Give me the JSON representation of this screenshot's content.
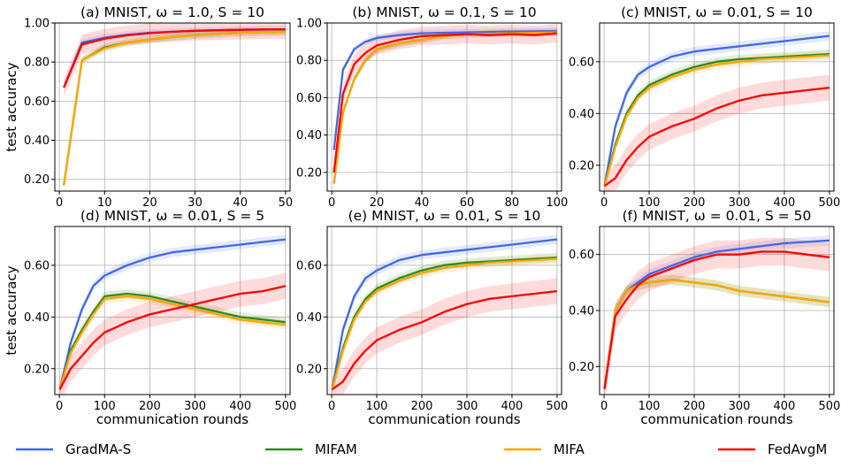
{
  "chart_data": [
    {
      "type": "line",
      "title": "(a) MNIST, ω = 1.0, S = 10",
      "xlabel": "",
      "ylabel": "test accuracy",
      "xlim": [
        -1,
        51
      ],
      "ylim": [
        0.14,
        1.0
      ],
      "xticks": [
        0,
        10,
        20,
        30,
        40,
        50
      ],
      "xtick_labels": [
        "0",
        "10",
        "20",
        "30",
        "40",
        "50"
      ],
      "yticks": [
        0.2,
        0.4,
        0.6,
        0.8,
        1.0
      ],
      "ytick_labels": [
        "0.20",
        "0.40",
        "0.60",
        "0.80",
        "1.00"
      ],
      "grid": true,
      "series": [
        {
          "name": "GradMA-S",
          "color": "#4169e1",
          "x": [
            1,
            5,
            10,
            15,
            20,
            25,
            30,
            35,
            40,
            45,
            50
          ],
          "y": [
            0.67,
            0.9,
            0.925,
            0.94,
            0.95,
            0.955,
            0.96,
            0.963,
            0.965,
            0.967,
            0.968
          ]
        },
        {
          "name": "MIFAM",
          "color": "#2e8b20",
          "x": [
            1,
            5,
            10,
            15,
            20,
            25,
            30,
            35,
            40,
            45,
            50
          ],
          "y": [
            0.17,
            0.81,
            0.875,
            0.9,
            0.915,
            0.928,
            0.938,
            0.945,
            0.95,
            0.953,
            0.955
          ]
        },
        {
          "name": "MIFA",
          "color": "#ffa500",
          "x": [
            1,
            5,
            10,
            15,
            20,
            25,
            30,
            35,
            40,
            45,
            50
          ],
          "y": [
            0.17,
            0.81,
            0.87,
            0.9,
            0.915,
            0.928,
            0.938,
            0.945,
            0.95,
            0.953,
            0.955
          ]
        },
        {
          "name": "FedAvgM",
          "color": "#ff0000",
          "x": [
            1,
            5,
            10,
            15,
            20,
            25,
            30,
            35,
            40,
            45,
            50
          ],
          "y": [
            0.67,
            0.89,
            0.92,
            0.937,
            0.948,
            0.955,
            0.96,
            0.963,
            0.965,
            0.967,
            0.968
          ]
        }
      ]
    },
    {
      "type": "line",
      "title": "(b) MNIST, ω = 0.1, S = 10",
      "xlabel": "",
      "ylabel": "",
      "xlim": [
        -2,
        102
      ],
      "ylim": [
        0.1,
        1.0
      ],
      "xticks": [
        0,
        20,
        40,
        60,
        80,
        100
      ],
      "xtick_labels": [
        "0",
        "20",
        "40",
        "60",
        "80",
        "100"
      ],
      "yticks": [
        0.2,
        0.4,
        0.6,
        0.8,
        1.0
      ],
      "ytick_labels": [
        "0.20",
        "0.40",
        "0.60",
        "0.80",
        "1.00"
      ],
      "grid": true,
      "series": [
        {
          "name": "GradMA-S",
          "color": "#4169e1",
          "x": [
            1,
            5,
            10,
            15,
            20,
            30,
            40,
            50,
            60,
            70,
            80,
            90,
            100
          ],
          "y": [
            0.32,
            0.75,
            0.86,
            0.9,
            0.92,
            0.935,
            0.945,
            0.948,
            0.95,
            0.952,
            0.954,
            0.955,
            0.956
          ]
        },
        {
          "name": "MIFAM",
          "color": "#2e8b20",
          "x": [
            1,
            5,
            10,
            15,
            20,
            30,
            40,
            50,
            60,
            70,
            80,
            90,
            100
          ],
          "y": [
            0.14,
            0.52,
            0.7,
            0.8,
            0.86,
            0.89,
            0.91,
            0.93,
            0.94,
            0.942,
            0.945,
            0.947,
            0.95
          ]
        },
        {
          "name": "MIFA",
          "color": "#ffa500",
          "x": [
            1,
            5,
            10,
            15,
            20,
            30,
            40,
            50,
            60,
            70,
            80,
            90,
            100
          ],
          "y": [
            0.14,
            0.52,
            0.7,
            0.8,
            0.86,
            0.89,
            0.91,
            0.93,
            0.94,
            0.942,
            0.945,
            0.947,
            0.95
          ]
        },
        {
          "name": "FedAvgM",
          "color": "#ff0000",
          "x": [
            1,
            5,
            10,
            15,
            20,
            30,
            40,
            50,
            60,
            70,
            80,
            90,
            100
          ],
          "y": [
            0.2,
            0.62,
            0.78,
            0.84,
            0.88,
            0.91,
            0.93,
            0.935,
            0.94,
            0.935,
            0.94,
            0.935,
            0.945
          ]
        }
      ]
    },
    {
      "type": "line",
      "title": "(c) MNIST, ω = 0.01, S = 10",
      "xlabel": "",
      "ylabel": "",
      "xlim": [
        -10,
        510
      ],
      "ylim": [
        0.1,
        0.75
      ],
      "xticks": [
        0,
        100,
        200,
        300,
        400,
        500
      ],
      "xtick_labels": [
        "0",
        "100",
        "200",
        "300",
        "400",
        "500"
      ],
      "yticks": [
        0.2,
        0.4,
        0.6
      ],
      "ytick_labels": [
        "0.20",
        "0.40",
        "0.60"
      ],
      "grid": true,
      "series": [
        {
          "name": "GradMA-S",
          "color": "#4169e1",
          "x": [
            1,
            25,
            50,
            75,
            100,
            150,
            200,
            250,
            300,
            350,
            400,
            450,
            500
          ],
          "y": [
            0.12,
            0.35,
            0.48,
            0.55,
            0.58,
            0.62,
            0.64,
            0.65,
            0.66,
            0.67,
            0.68,
            0.69,
            0.7
          ]
        },
        {
          "name": "MIFAM",
          "color": "#2e8b20",
          "x": [
            1,
            25,
            50,
            75,
            100,
            150,
            200,
            250,
            300,
            350,
            400,
            450,
            500
          ],
          "y": [
            0.12,
            0.28,
            0.4,
            0.47,
            0.51,
            0.55,
            0.58,
            0.6,
            0.61,
            0.615,
            0.62,
            0.625,
            0.63
          ]
        },
        {
          "name": "MIFA",
          "color": "#ffa500",
          "x": [
            1,
            25,
            50,
            75,
            100,
            150,
            200,
            250,
            300,
            350,
            400,
            450,
            500
          ],
          "y": [
            0.12,
            0.27,
            0.39,
            0.46,
            0.5,
            0.54,
            0.57,
            0.59,
            0.6,
            0.61,
            0.615,
            0.62,
            0.625
          ]
        },
        {
          "name": "FedAvgM",
          "color": "#ff0000",
          "x": [
            1,
            25,
            50,
            75,
            100,
            150,
            200,
            250,
            300,
            350,
            400,
            450,
            500
          ],
          "y": [
            0.12,
            0.15,
            0.22,
            0.27,
            0.31,
            0.35,
            0.38,
            0.42,
            0.45,
            0.47,
            0.48,
            0.49,
            0.5
          ]
        }
      ]
    },
    {
      "type": "line",
      "title": "(d) MNIST, ω = 0.01, S = 5",
      "xlabel": "communication rounds",
      "ylabel": "test accuracy",
      "xlim": [
        -10,
        510
      ],
      "ylim": [
        0.1,
        0.75
      ],
      "xticks": [
        0,
        100,
        200,
        300,
        400,
        500
      ],
      "xtick_labels": [
        "0",
        "100",
        "200",
        "300",
        "400",
        "500"
      ],
      "yticks": [
        0.2,
        0.4,
        0.6
      ],
      "ytick_labels": [
        "0.20",
        "0.40",
        "0.60"
      ],
      "grid": true,
      "series": [
        {
          "name": "GradMA-S",
          "color": "#4169e1",
          "x": [
            1,
            25,
            50,
            75,
            100,
            150,
            200,
            250,
            300,
            350,
            400,
            450,
            500
          ],
          "y": [
            0.12,
            0.3,
            0.43,
            0.52,
            0.56,
            0.6,
            0.63,
            0.65,
            0.66,
            0.67,
            0.68,
            0.69,
            0.7
          ]
        },
        {
          "name": "MIFAM",
          "color": "#2e8b20",
          "x": [
            1,
            25,
            50,
            75,
            100,
            150,
            200,
            250,
            300,
            350,
            400,
            450,
            500
          ],
          "y": [
            0.12,
            0.27,
            0.35,
            0.42,
            0.48,
            0.49,
            0.48,
            0.46,
            0.44,
            0.42,
            0.4,
            0.39,
            0.38
          ]
        },
        {
          "name": "MIFA",
          "color": "#ffa500",
          "x": [
            1,
            25,
            50,
            75,
            100,
            150,
            200,
            250,
            300,
            350,
            400,
            450,
            500
          ],
          "y": [
            0.12,
            0.26,
            0.34,
            0.41,
            0.47,
            0.48,
            0.47,
            0.45,
            0.43,
            0.41,
            0.39,
            0.38,
            0.37
          ]
        },
        {
          "name": "FedAvgM",
          "color": "#ff0000",
          "x": [
            1,
            25,
            50,
            75,
            100,
            150,
            200,
            250,
            300,
            350,
            400,
            450,
            500
          ],
          "y": [
            0.12,
            0.2,
            0.25,
            0.3,
            0.34,
            0.38,
            0.41,
            0.43,
            0.45,
            0.47,
            0.49,
            0.5,
            0.52
          ]
        }
      ]
    },
    {
      "type": "line",
      "title": "(e) MNIST, ω = 0.01, S = 10",
      "xlabel": "communication rounds",
      "ylabel": "",
      "xlim": [
        -10,
        510
      ],
      "ylim": [
        0.1,
        0.75
      ],
      "xticks": [
        0,
        100,
        200,
        300,
        400,
        500
      ],
      "xtick_labels": [
        "0",
        "100",
        "200",
        "300",
        "400",
        "500"
      ],
      "yticks": [
        0.2,
        0.4,
        0.6
      ],
      "ytick_labels": [
        "0.20",
        "0.40",
        "0.60"
      ],
      "grid": true,
      "series": [
        {
          "name": "GradMA-S",
          "color": "#4169e1",
          "x": [
            1,
            25,
            50,
            75,
            100,
            150,
            200,
            250,
            300,
            350,
            400,
            450,
            500
          ],
          "y": [
            0.12,
            0.35,
            0.48,
            0.55,
            0.58,
            0.62,
            0.64,
            0.65,
            0.66,
            0.67,
            0.68,
            0.69,
            0.7
          ]
        },
        {
          "name": "MIFAM",
          "color": "#2e8b20",
          "x": [
            1,
            25,
            50,
            75,
            100,
            150,
            200,
            250,
            300,
            350,
            400,
            450,
            500
          ],
          "y": [
            0.12,
            0.28,
            0.4,
            0.47,
            0.51,
            0.55,
            0.58,
            0.6,
            0.61,
            0.615,
            0.62,
            0.625,
            0.63
          ]
        },
        {
          "name": "MIFA",
          "color": "#ffa500",
          "x": [
            1,
            25,
            50,
            75,
            100,
            150,
            200,
            250,
            300,
            350,
            400,
            450,
            500
          ],
          "y": [
            0.12,
            0.27,
            0.39,
            0.46,
            0.5,
            0.54,
            0.57,
            0.59,
            0.6,
            0.61,
            0.615,
            0.62,
            0.625
          ]
        },
        {
          "name": "FedAvgM",
          "color": "#ff0000",
          "x": [
            1,
            25,
            50,
            75,
            100,
            150,
            200,
            250,
            300,
            350,
            400,
            450,
            500
          ],
          "y": [
            0.12,
            0.15,
            0.22,
            0.27,
            0.31,
            0.35,
            0.38,
            0.42,
            0.45,
            0.47,
            0.48,
            0.49,
            0.5
          ]
        }
      ]
    },
    {
      "type": "line",
      "title": "(f) MNIST, ω = 0.01, S = 50",
      "xlabel": "communication rounds",
      "ylabel": "",
      "xlim": [
        -10,
        510
      ],
      "ylim": [
        0.1,
        0.7
      ],
      "xticks": [
        0,
        100,
        200,
        300,
        400,
        500
      ],
      "xtick_labels": [
        "0",
        "100",
        "200",
        "300",
        "400",
        "500"
      ],
      "yticks": [
        0.2,
        0.4,
        0.6
      ],
      "ytick_labels": [
        "0.20",
        "0.40",
        "0.60"
      ],
      "grid": true,
      "series": [
        {
          "name": "GradMA-S",
          "color": "#4169e1",
          "x": [
            1,
            25,
            50,
            75,
            100,
            150,
            200,
            250,
            300,
            350,
            400,
            450,
            500
          ],
          "y": [
            0.12,
            0.4,
            0.47,
            0.5,
            0.53,
            0.56,
            0.59,
            0.61,
            0.62,
            0.63,
            0.64,
            0.645,
            0.65
          ]
        },
        {
          "name": "MIFAM",
          "color": "#2e8b20",
          "x": [
            1,
            25,
            50,
            75,
            100,
            150,
            200,
            250,
            300,
            350,
            400,
            450,
            500
          ],
          "y": [
            0.12,
            0.4,
            0.47,
            0.49,
            0.5,
            0.51,
            0.5,
            0.49,
            0.47,
            0.46,
            0.45,
            0.44,
            0.43
          ]
        },
        {
          "name": "MIFA",
          "color": "#ffa500",
          "x": [
            1,
            25,
            50,
            75,
            100,
            150,
            200,
            250,
            300,
            350,
            400,
            450,
            500
          ],
          "y": [
            0.12,
            0.4,
            0.47,
            0.49,
            0.5,
            0.51,
            0.5,
            0.49,
            0.47,
            0.46,
            0.45,
            0.44,
            0.43
          ]
        },
        {
          "name": "FedAvgM",
          "color": "#ff0000",
          "x": [
            1,
            25,
            50,
            75,
            100,
            150,
            200,
            250,
            300,
            350,
            400,
            450,
            500
          ],
          "y": [
            0.12,
            0.38,
            0.44,
            0.49,
            0.52,
            0.55,
            0.58,
            0.6,
            0.6,
            0.61,
            0.61,
            0.6,
            0.59
          ]
        }
      ]
    }
  ],
  "legend": {
    "placement": "bottom",
    "items": [
      {
        "label": "GradMA-S",
        "color": "#4169e1"
      },
      {
        "label": "MIFAM",
        "color": "#2e8b20"
      },
      {
        "label": "MIFA",
        "color": "#ffa500"
      },
      {
        "label": "FedAvgM",
        "color": "#ff0000"
      }
    ]
  }
}
